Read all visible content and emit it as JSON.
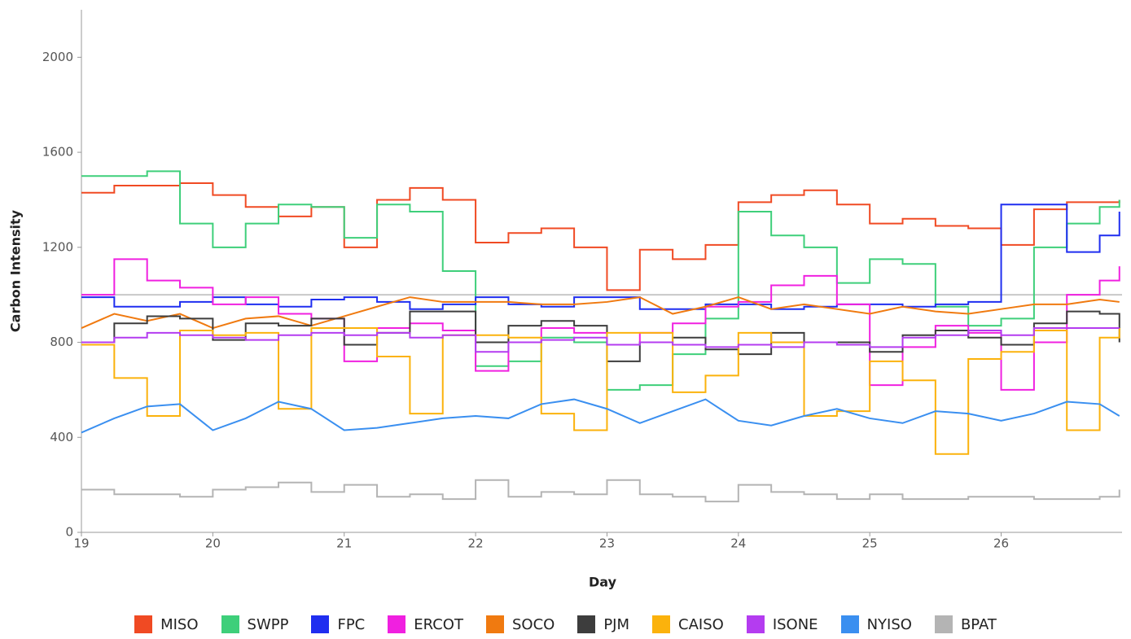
{
  "chart_data": {
    "type": "line",
    "x_label": "Day",
    "y_label": "Carbon Intensity",
    "x": [
      19,
      19.25,
      19.5,
      19.75,
      20,
      20.25,
      20.5,
      20.75,
      21,
      21.25,
      21.5,
      21.75,
      22,
      22.25,
      22.5,
      22.75,
      23,
      23.25,
      23.5,
      23.75,
      24,
      24.25,
      24.5,
      24.75,
      25,
      25.25,
      25.5,
      25.75,
      26,
      26.25,
      26.5,
      26.75,
      26.9
    ],
    "xlim": [
      19,
      26.92
    ],
    "xticks": [
      19,
      20,
      21,
      22,
      23,
      24,
      25,
      26
    ],
    "ylim": [
      0,
      2200
    ],
    "yticks": [
      0,
      400,
      800,
      1200,
      1600,
      2000
    ],
    "reference_line": 1000,
    "reference_color": "#c8c8c8",
    "series": [
      {
        "name": "MISO",
        "color": "#f04a23",
        "step": true,
        "values": [
          1430,
          1460,
          1460,
          1470,
          1420,
          1370,
          1330,
          1370,
          1200,
          1400,
          1450,
          1400,
          1220,
          1260,
          1280,
          1200,
          1020,
          1190,
          1150,
          1210,
          1390,
          1420,
          1440,
          1380,
          1300,
          1320,
          1290,
          1280,
          1210,
          1360,
          1390,
          1390,
          1400
        ]
      },
      {
        "name": "SWPP",
        "color": "#3ecf7a",
        "step": true,
        "values": [
          1500,
          1500,
          1520,
          1300,
          1200,
          1300,
          1380,
          1370,
          1240,
          1380,
          1350,
          1100,
          700,
          720,
          820,
          800,
          600,
          620,
          750,
          900,
          1350,
          1250,
          1200,
          1050,
          1150,
          1130,
          950,
          870,
          900,
          1200,
          1300,
          1370,
          1400
        ]
      },
      {
        "name": "FPC",
        "color": "#1f2ef0",
        "step": true,
        "values": [
          990,
          950,
          950,
          970,
          990,
          960,
          950,
          980,
          990,
          970,
          940,
          960,
          990,
          960,
          950,
          990,
          990,
          940,
          940,
          960,
          960,
          940,
          950,
          960,
          960,
          950,
          960,
          970,
          1380,
          1380,
          1180,
          1250,
          1350
        ]
      },
      {
        "name": "ERCOT",
        "color": "#f020e0",
        "step": true,
        "values": [
          1000,
          1150,
          1060,
          1030,
          960,
          990,
          920,
          900,
          720,
          860,
          880,
          850,
          680,
          800,
          860,
          840,
          790,
          840,
          880,
          950,
          970,
          1040,
          1080,
          960,
          620,
          780,
          870,
          840,
          600,
          800,
          1000,
          1060,
          1120
        ]
      },
      {
        "name": "SOCO",
        "color": "#f07a10",
        "step": false,
        "values": [
          860,
          920,
          890,
          920,
          860,
          900,
          910,
          870,
          910,
          950,
          990,
          970,
          970,
          970,
          960,
          960,
          970,
          990,
          920,
          950,
          990,
          940,
          960,
          940,
          920,
          950,
          930,
          920,
          940,
          960,
          960,
          980,
          970
        ]
      },
      {
        "name": "PJM",
        "color": "#3d3d3d",
        "step": true,
        "values": [
          800,
          880,
          910,
          900,
          810,
          880,
          870,
          900,
          790,
          840,
          930,
          930,
          800,
          870,
          890,
          870,
          720,
          800,
          820,
          770,
          750,
          840,
          800,
          800,
          760,
          830,
          850,
          820,
          790,
          880,
          930,
          920,
          800
        ]
      },
      {
        "name": "CAISO",
        "color": "#fbb20c",
        "step": true,
        "values": [
          790,
          650,
          490,
          850,
          830,
          840,
          520,
          860,
          860,
          740,
          500,
          830,
          830,
          820,
          500,
          430,
          840,
          840,
          590,
          660,
          840,
          800,
          490,
          510,
          720,
          640,
          330,
          730,
          760,
          850,
          430,
          820,
          860
        ]
      },
      {
        "name": "ISONE",
        "color": "#b43cf0",
        "step": true,
        "values": [
          800,
          820,
          840,
          830,
          820,
          810,
          830,
          840,
          830,
          840,
          820,
          830,
          760,
          800,
          810,
          820,
          790,
          800,
          790,
          780,
          790,
          780,
          800,
          790,
          780,
          820,
          830,
          850,
          830,
          860,
          860,
          860,
          860
        ]
      },
      {
        "name": "NYISO",
        "color": "#3a8ff0",
        "step": false,
        "values": [
          420,
          480,
          530,
          540,
          430,
          480,
          550,
          520,
          430,
          440,
          460,
          480,
          490,
          480,
          540,
          560,
          520,
          460,
          510,
          560,
          470,
          450,
          490,
          520,
          480,
          460,
          510,
          500,
          470,
          500,
          550,
          540,
          490
        ]
      },
      {
        "name": "BPAT",
        "color": "#b4b4b4",
        "step": true,
        "values": [
          180,
          160,
          160,
          150,
          180,
          190,
          210,
          170,
          200,
          150,
          160,
          140,
          220,
          150,
          170,
          160,
          220,
          160,
          150,
          130,
          200,
          170,
          160,
          140,
          160,
          140,
          140,
          150,
          150,
          140,
          140,
          150,
          180
        ]
      }
    ]
  }
}
